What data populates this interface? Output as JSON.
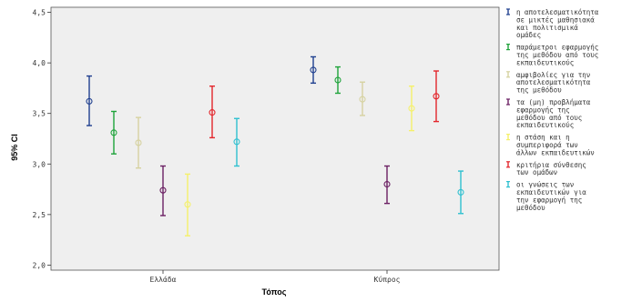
{
  "chart_data": {
    "type": "errorbar",
    "xlabel": "Τόπος",
    "ylabel": "95% CI",
    "ylim": [
      1.95,
      4.55
    ],
    "yticks": [
      2.0,
      2.5,
      3.0,
      3.5,
      4.0,
      4.5
    ],
    "ytick_labels": [
      "2,0",
      "2,5",
      "3,0",
      "3,5",
      "4,0",
      "4,5"
    ],
    "categories": [
      "Ελλάδα",
      "Κύπρος"
    ],
    "grid": false,
    "legend_position": "right",
    "series": [
      {
        "name": "η αποτελεσματικότητα σε μικτές μαθησιακά και πολιτισμικά ομάδες",
        "name_lines": [
          "η αποτελεσματικότητα",
          "σε μικτές μαθησιακά",
          "και πολιτισμικά",
          "ομάδες"
        ],
        "color": "#1f3f8f",
        "means": [
          3.62,
          3.93
        ],
        "lower": [
          3.38,
          3.8
        ],
        "upper": [
          3.87,
          4.06
        ]
      },
      {
        "name": "παράμετροι εφαρμογής της μεθόδου από τους εκπαιδευτικούς",
        "name_lines": [
          "παράμετροι εφαρμογής",
          "της μεθόδου από τους",
          "εκπαιδευτικούς"
        ],
        "color": "#1ea33a",
        "means": [
          3.31,
          3.83
        ],
        "lower": [
          3.1,
          3.7
        ],
        "upper": [
          3.52,
          3.96
        ]
      },
      {
        "name": "αμφιβολίες για την αποτελεσματικότητα της μεθόδου",
        "name_lines": [
          "αμφιβολίες για την",
          "αποτελεσματικότητα",
          "της μεθόδου"
        ],
        "color": "#d6d2a0",
        "means": [
          3.21,
          3.64
        ],
        "lower": [
          2.96,
          3.48
        ],
        "upper": [
          3.46,
          3.81
        ]
      },
      {
        "name": "τα (μη) προβλήματα εφαρμογής της μεθόδου από τους εκπαιδευτικούς",
        "name_lines": [
          "τα (μη) προβλήματα",
          "εφαρμογής της",
          "μεθόδου από τους",
          "εκπαιδευτικούς"
        ],
        "color": "#6b1f63",
        "means": [
          2.74,
          2.8
        ],
        "lower": [
          2.49,
          2.61
        ],
        "upper": [
          2.98,
          2.98
        ]
      },
      {
        "name": "η στάση και η συμπεριφορά των άλλων εκπαιδευτικών",
        "name_lines": [
          "η στάση και η",
          "συμπεριφορά των",
          "άλλων εκπαιδευτικών"
        ],
        "color": "#f5f06a",
        "means": [
          2.6,
          3.55
        ],
        "lower": [
          2.29,
          3.33
        ],
        "upper": [
          2.9,
          3.77
        ]
      },
      {
        "name": "κριτήρια σύνθεσης των ομάδων",
        "name_lines": [
          "κριτήρια σύνθεσης",
          "των ομάδων"
        ],
        "color": "#e3262c",
        "means": [
          3.51,
          3.67
        ],
        "lower": [
          3.26,
          3.42
        ],
        "upper": [
          3.77,
          3.92
        ]
      },
      {
        "name": "οι γνώσεις των εκπαιδευτικών για την εφαρμογή της μεθόδου",
        "name_lines": [
          "οι γνώσεις των",
          "εκπαιδευτικών για",
          "την εφαρμογή της",
          "μεθόδου"
        ],
        "color": "#2fc0d0",
        "means": [
          3.22,
          2.72
        ],
        "lower": [
          2.98,
          2.51
        ],
        "upper": [
          3.45,
          2.93
        ]
      }
    ]
  }
}
